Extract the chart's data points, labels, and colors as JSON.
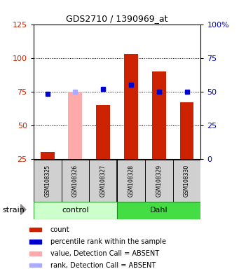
{
  "title": "GDS2710 / 1390969_at",
  "samples": [
    "GSM108325",
    "GSM108326",
    "GSM108327",
    "GSM108328",
    "GSM108329",
    "GSM108330"
  ],
  "absent": [
    false,
    true,
    false,
    false,
    false,
    false
  ],
  "count_values": [
    30,
    75,
    65,
    103,
    90,
    67
  ],
  "rank_values": [
    48,
    50,
    52,
    55,
    50,
    50
  ],
  "ylim_left": [
    25,
    125
  ],
  "ylim_right": [
    0,
    100
  ],
  "left_ticks": [
    25,
    50,
    75,
    100,
    125
  ],
  "right_ticks": [
    0,
    25,
    50,
    75,
    100
  ],
  "right_tick_labels": [
    "0",
    "25",
    "50",
    "75",
    "100%"
  ],
  "left_color": "#cc2200",
  "right_color": "#0000cc",
  "control_color": "#ccffcc",
  "dahl_color": "#44dd44",
  "bar_color": "#cc2200",
  "absent_bar_color": "#ffaaaa",
  "rank_color": "#0000cc",
  "absent_rank_color": "#aaaaff",
  "gray_box_color": "#d0d0d0",
  "legend_items": [
    {
      "label": "count",
      "color": "#cc2200",
      "type": "square"
    },
    {
      "label": "percentile rank within the sample",
      "color": "#0000cc",
      "type": "square"
    },
    {
      "label": "value, Detection Call = ABSENT",
      "color": "#ffaaaa",
      "type": "square"
    },
    {
      "label": "rank, Detection Call = ABSENT",
      "color": "#aaaaff",
      "type": "square"
    }
  ]
}
